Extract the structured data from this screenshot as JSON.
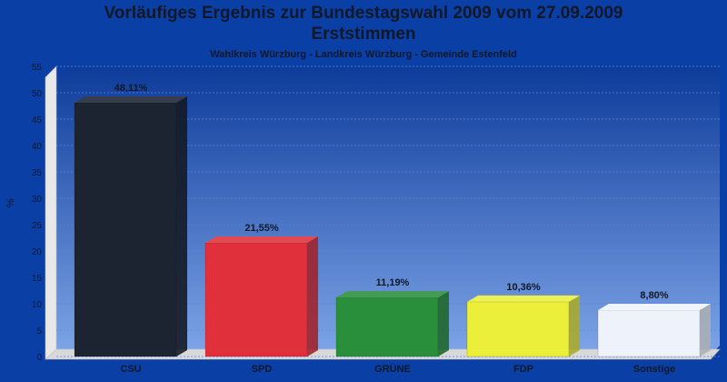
{
  "title": "Vorläufiges Ergebnis zur Bundestagswahl 2009 vom 27.09.2009",
  "title2": "Erststimmen",
  "subtitle": "Wahlkreis Würzburg - Landkreis Würzburg - Gemeinde Estenfeld",
  "colors": {
    "background": "#0a3fa6",
    "plot_top": "#0d3b9a",
    "plot_bottom": "#7fa6e8",
    "floor": "#d9d9d9"
  },
  "chart_data": {
    "type": "bar",
    "categories": [
      "CSU",
      "SPD",
      "GRÜNE",
      "FDP",
      "Sonstige"
    ],
    "values": [
      48.11,
      21.55,
      11.19,
      10.36,
      8.8
    ],
    "value_labels": [
      "48,11%",
      "21,55%",
      "11,19%",
      "10,36%",
      "8,80%"
    ],
    "bar_colors": [
      "#1c2331",
      "#e0303c",
      "#2a8f3a",
      "#ecef3a",
      "#eef3fb"
    ],
    "ylabel": "%",
    "xlabel": "",
    "ylim": [
      0,
      55
    ],
    "yticks": [
      0,
      5,
      10,
      15,
      20,
      25,
      30,
      35,
      40,
      45,
      50,
      55
    ],
    "grid": true,
    "legend": "none"
  }
}
